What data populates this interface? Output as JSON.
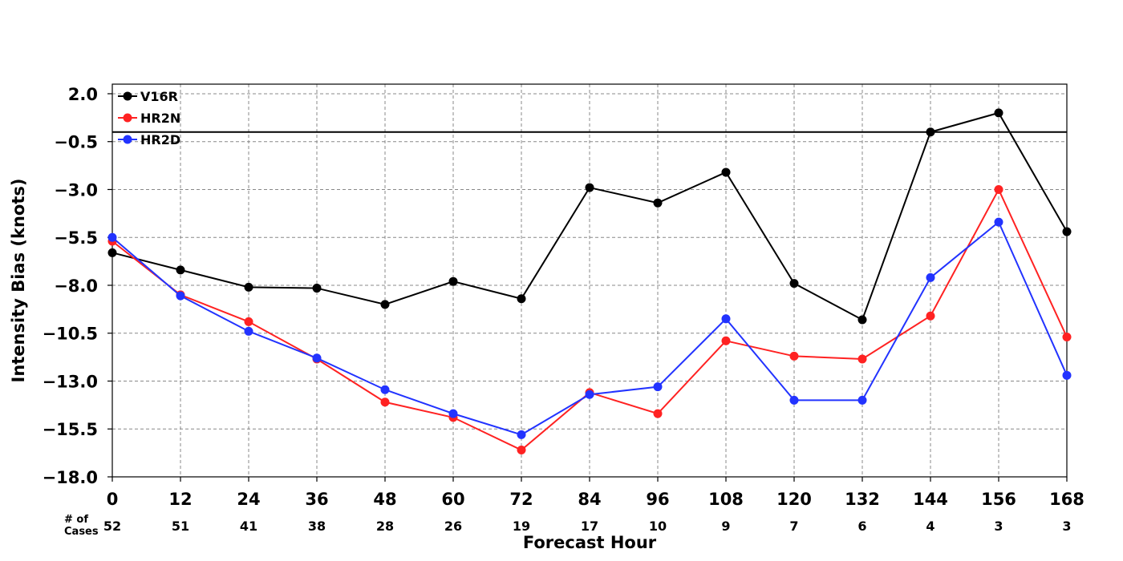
{
  "chart_data": {
    "type": "line",
    "title": "",
    "xlabel": "Forecast Hour",
    "ylabel": "Intensity Bias (knots)",
    "x": [
      0,
      12,
      24,
      36,
      48,
      60,
      72,
      84,
      96,
      108,
      120,
      132,
      144,
      156,
      168
    ],
    "xlim": [
      0,
      168
    ],
    "ylim": [
      -18.0,
      2.5
    ],
    "yticks": [
      2.0,
      -0.5,
      -3.0,
      -5.5,
      -8.0,
      -10.5,
      -13.0,
      -15.5,
      -18.0
    ],
    "ytick_labels": [
      "2.0",
      "−0.5",
      "−3.0",
      "−5.5",
      "−8.0",
      "−10.5",
      "−13.0",
      "−15.5",
      "−18.0"
    ],
    "xtick_labels": [
      "0",
      "12",
      "24",
      "36",
      "48",
      "60",
      "72",
      "84",
      "96",
      "108",
      "120",
      "132",
      "144",
      "156",
      "168"
    ],
    "grid": true,
    "zero_line": 0,
    "legend_position": "top-left",
    "series": [
      {
        "name": "V16R",
        "color": "#000000",
        "values": [
          -6.3,
          -7.2,
          -8.1,
          -8.15,
          -9.0,
          -7.8,
          -8.7,
          -2.9,
          -3.7,
          -2.1,
          -7.9,
          -9.8,
          0.0,
          1.0,
          -5.2
        ]
      },
      {
        "name": "HR2N",
        "color": "#ff2222",
        "values": [
          -5.7,
          -8.5,
          -9.9,
          -11.85,
          -14.1,
          -14.9,
          -16.6,
          -13.6,
          -14.7,
          -10.9,
          -11.7,
          -11.85,
          -9.6,
          -3.0,
          -10.7
        ]
      },
      {
        "name": "HR2D",
        "color": "#2233ff",
        "values": [
          -5.5,
          -8.55,
          -10.4,
          -11.8,
          -13.45,
          -14.7,
          -15.8,
          -13.7,
          -13.3,
          -9.75,
          -14.0,
          -14.0,
          -7.6,
          -4.7,
          -12.7
        ]
      }
    ],
    "cases_label": [
      "# of",
      "Cases"
    ],
    "cases": [
      "52",
      "51",
      "41",
      "38",
      "28",
      "26",
      "19",
      "17",
      "10",
      "9",
      "7",
      "6",
      "4",
      "3",
      "3"
    ]
  }
}
